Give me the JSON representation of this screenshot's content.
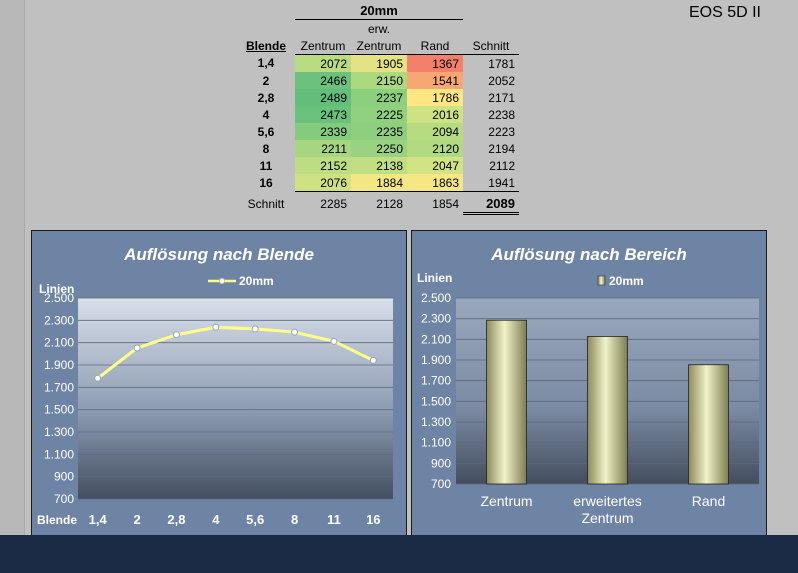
{
  "model": "EOS 5D II",
  "table": {
    "focal": "20mm",
    "erw_label": "erw.",
    "headers": [
      "Blende",
      "Zentrum",
      "Zentrum",
      "Rand",
      "Schnitt"
    ],
    "rows": [
      {
        "blende": "1,4",
        "v": [
          2072,
          1905,
          1367,
          1781
        ],
        "c": [
          "#b9dc82",
          "#e4e384",
          "#f4806a"
        ]
      },
      {
        "blende": "2",
        "v": [
          2466,
          2150,
          1541,
          2052
        ],
        "c": [
          "#6cc27d",
          "#acd880",
          "#f8a772"
        ]
      },
      {
        "blende": "2,8",
        "v": [
          2489,
          2237,
          1786,
          2171
        ],
        "c": [
          "#63be7b",
          "#8ccf7f",
          "#fee783"
        ]
      },
      {
        "blende": "4",
        "v": [
          2473,
          2225,
          2016,
          2238
        ],
        "c": [
          "#6ac17c",
          "#90d07f",
          "#cfe283"
        ]
      },
      {
        "blende": "5,6",
        "v": [
          2339,
          2235,
          2094,
          2223
        ],
        "c": [
          "#84cb7e",
          "#8dcf7f",
          "#b7db81"
        ]
      },
      {
        "blende": "8",
        "v": [
          2211,
          2250,
          2120,
          2194
        ],
        "c": [
          "#a6d680",
          "#9ad380",
          "#b0d981"
        ]
      },
      {
        "blende": "11",
        "v": [
          2152,
          2138,
          2047,
          2112
        ],
        "c": [
          "#bcdd82",
          "#c0de82",
          "#d2e383"
        ]
      },
      {
        "blende": "16",
        "v": [
          2076,
          1884,
          1863,
          1941
        ],
        "c": [
          "#cfe283",
          "#f3e783",
          "#f6e784"
        ]
      }
    ],
    "avg_label": "Schnitt",
    "avg": [
      2285,
      2128,
      1854,
      2089
    ]
  },
  "chart_data": [
    {
      "type": "line",
      "title": "Auflösung nach Blende",
      "ylabel": "Linien",
      "xlabel": "Blende",
      "categories": [
        "1,4",
        "2",
        "2,8",
        "4",
        "5,6",
        "8",
        "11",
        "16"
      ],
      "series": [
        {
          "name": "20mm",
          "values": [
            1781,
            2052,
            2171,
            2238,
            2223,
            2194,
            2112,
            1941
          ]
        }
      ],
      "ylim": [
        700,
        2500
      ],
      "yticks": [
        "700",
        "900",
        "1.100",
        "1.300",
        "1.500",
        "1.700",
        "1.900",
        "2.100",
        "2.300",
        "2.500"
      ],
      "grid": true,
      "legend": "top",
      "line_color": "#ffff88"
    },
    {
      "type": "bar",
      "title": "Auflösung nach Bereich",
      "ylabel": "Linien",
      "categories": [
        "Zentrum",
        "erweitertes Zentrum",
        "Rand"
      ],
      "category_lines": [
        [
          "Zentrum"
        ],
        [
          "erweitertes",
          "Zentrum"
        ],
        [
          "Rand"
        ]
      ],
      "series": [
        {
          "name": "20mm",
          "values": [
            2285,
            2128,
            1854
          ]
        }
      ],
      "ylim": [
        700,
        2500
      ],
      "yticks": [
        "700",
        "900",
        "1.100",
        "1.300",
        "1.500",
        "1.700",
        "1.900",
        "2.100",
        "2.300",
        "2.500"
      ],
      "grid": true,
      "legend": "top"
    }
  ]
}
